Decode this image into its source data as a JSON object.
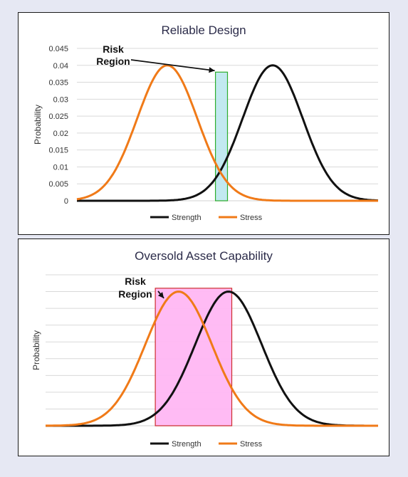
{
  "colors": {
    "strength": "#111111",
    "stress": "#f07a18",
    "risk_box_1_fill": "#bfe8f0",
    "risk_box_1_stroke": "#22aa22",
    "risk_box_2_fill": "#ffb8f4",
    "risk_box_2_stroke": "#cc2222",
    "grid": "#d9d9d9"
  },
  "chart_data": [
    {
      "type": "line",
      "title": "Reliable Design",
      "xlabel": "",
      "ylabel": "Probability",
      "ylim": [
        0,
        0.045
      ],
      "y_ticks": [
        "0",
        "0.005",
        "0.01",
        "0.015",
        "0.02",
        "0.025",
        "0.03",
        "0.035",
        "0.04",
        "0.045"
      ],
      "grid": true,
      "legend_position": "bottom",
      "series": [
        {
          "name": "Strength",
          "distribution": "normal",
          "mean": 65,
          "sd": 10,
          "peak": 0.04,
          "x_range": [
            0,
            100
          ]
        },
        {
          "name": "Stress",
          "distribution": "normal",
          "mean": 30,
          "sd": 10,
          "peak": 0.04,
          "x_range": [
            0,
            100
          ]
        }
      ],
      "annotation": {
        "text_line1": "Risk",
        "text_line2": "Region",
        "x_range": [
          46,
          50
        ],
        "y_top": 0.038
      }
    },
    {
      "type": "line",
      "title": "Oversold Asset Capability",
      "xlabel": "",
      "ylabel": "Probability",
      "ylim": [
        0,
        0.045
      ],
      "y_ticks": [],
      "grid": true,
      "legend_position": "bottom",
      "series": [
        {
          "name": "Strength",
          "distribution": "normal",
          "mean": 55,
          "sd": 10,
          "peak": 0.04,
          "x_range": [
            0,
            100
          ]
        },
        {
          "name": "Stress",
          "distribution": "normal",
          "mean": 40,
          "sd": 10,
          "peak": 0.04,
          "x_range": [
            0,
            100
          ]
        }
      ],
      "annotation": {
        "text_line1": "Risk",
        "text_line2": "Region",
        "x_range": [
          33,
          56
        ],
        "y_top": 0.041
      }
    }
  ]
}
